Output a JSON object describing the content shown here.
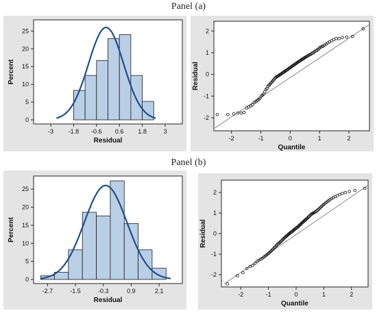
{
  "panels": [
    {
      "label": "Panel (a)",
      "histogram": {
        "type": "bar",
        "xlabel": "Residual",
        "ylabel": "Percent",
        "xlim": [
          -3.9,
          3.9
        ],
        "ylim": [
          0,
          27
        ],
        "xticks": [
          -3,
          -1.8,
          -0.6,
          0.6,
          1.8,
          3
        ],
        "xtick_labels": [
          "-3",
          "-1.8",
          "-0.6",
          "0.6",
          "1.8",
          "3"
        ],
        "yticks": [
          0,
          5,
          10,
          15,
          20,
          25
        ],
        "ytick_labels": [
          "0",
          "5",
          "10",
          "15",
          "20",
          "25"
        ],
        "bins": [
          {
            "start": -1.8,
            "end": -1.2,
            "value": 8.3
          },
          {
            "start": -1.2,
            "end": -0.6,
            "value": 12.5
          },
          {
            "start": -0.6,
            "end": 0.0,
            "value": 16.7
          },
          {
            "start": 0.0,
            "end": 0.6,
            "value": 22.9
          },
          {
            "start": 0.6,
            "end": 1.2,
            "value": 24.0
          },
          {
            "start": 1.2,
            "end": 1.8,
            "value": 12.5
          },
          {
            "start": 1.8,
            "end": 2.4,
            "value": 5.2
          }
        ],
        "normal_curve": {
          "mean": -0.1,
          "sd": 0.92,
          "xrange": [
            -2.7,
            2.5
          ],
          "color": "#1f4e8c"
        }
      },
      "qq": {
        "type": "scatter",
        "xlabel": "Quantile",
        "ylabel": "Residual",
        "xlim": [
          -2.6,
          2.7
        ],
        "ylim": [
          -2.6,
          2.45
        ],
        "xticks": [
          -2,
          -1,
          0,
          1,
          2
        ],
        "xtick_labels": [
          "-2",
          "-1",
          "0",
          "1",
          "2"
        ],
        "yticks": [
          -2,
          -1,
          0,
          1,
          2
        ],
        "ytick_labels": [
          "-2",
          "-1",
          "0",
          "1",
          "2"
        ],
        "reference_line": {
          "x": [
            -2.6,
            2.7
          ],
          "y": [
            -2.5,
            2.3
          ],
          "color": "#9a9a9a"
        },
        "n_points": 96,
        "points_y": [
          -1.85,
          -1.85,
          -1.82,
          -1.78,
          -1.78,
          -1.75,
          -1.55,
          -1.5,
          -1.45,
          -1.4,
          -1.3,
          -1.25,
          -1.2,
          -1.15,
          -1.1,
          -1.0,
          -0.95,
          -0.9,
          -0.8,
          -0.7,
          -0.65,
          -0.55,
          -0.5,
          -0.45,
          -0.4,
          -0.35,
          -0.3,
          -0.25,
          -0.2,
          -0.15,
          -0.12,
          -0.1,
          -0.08,
          -0.05,
          -0.02,
          0.0,
          0.02,
          0.05,
          0.08,
          0.1,
          0.12,
          0.15,
          0.18,
          0.2,
          0.22,
          0.25,
          0.28,
          0.3,
          0.32,
          0.35,
          0.38,
          0.4,
          0.42,
          0.45,
          0.48,
          0.5,
          0.52,
          0.55,
          0.58,
          0.6,
          0.62,
          0.65,
          0.68,
          0.7,
          0.72,
          0.75,
          0.78,
          0.8,
          0.82,
          0.85,
          0.88,
          0.9,
          0.92,
          0.95,
          0.98,
          1.0,
          1.05,
          1.08,
          1.1,
          1.15,
          1.2,
          1.25,
          1.28,
          1.3,
          1.35,
          1.4,
          1.45,
          1.5,
          1.55,
          1.6,
          1.65,
          1.65,
          1.7,
          1.72,
          1.75,
          2.1
        ]
      }
    },
    {
      "label": "Panel (b)",
      "histogram": {
        "type": "bar",
        "xlabel": "Residual",
        "ylabel": "Percent",
        "xlim": [
          -3.3,
          3.1
        ],
        "ylim": [
          0,
          27.5
        ],
        "xticks": [
          -2.7,
          -1.5,
          -0.3,
          0.9,
          2.1
        ],
        "xtick_labels": [
          "-2.7",
          "-1.5",
          "-0.3",
          "0.9",
          "2.1"
        ],
        "yticks": [
          0,
          5,
          10,
          15,
          20,
          25
        ],
        "ytick_labels": [
          "0",
          "5",
          "10",
          "15",
          "20",
          "25"
        ],
        "bins": [
          {
            "start": -3.0,
            "end": -2.4,
            "value": 1.0
          },
          {
            "start": -2.4,
            "end": -1.8,
            "value": 2.0
          },
          {
            "start": -1.8,
            "end": -1.2,
            "value": 8.2
          },
          {
            "start": -1.2,
            "end": -0.6,
            "value": 18.6
          },
          {
            "start": -0.6,
            "end": 0.0,
            "value": 17.6
          },
          {
            "start": 0.0,
            "end": 0.6,
            "value": 27.3
          },
          {
            "start": 0.6,
            "end": 1.2,
            "value": 15.5
          },
          {
            "start": 1.2,
            "end": 1.8,
            "value": 8.2
          },
          {
            "start": 1.8,
            "end": 2.4,
            "value": 3.1
          }
        ],
        "normal_curve": {
          "mean": -0.2,
          "sd": 0.92,
          "xrange": [
            -3.0,
            2.6
          ],
          "color": "#1f4e8c"
        }
      },
      "qq": {
        "type": "scatter",
        "xlabel": "Quantile",
        "ylabel": "Residual",
        "xlim": [
          -2.7,
          2.6
        ],
        "ylim": [
          -2.6,
          2.6
        ],
        "xticks": [
          -2,
          -1,
          0,
          1,
          2
        ],
        "xtick_labels": [
          "-2",
          "-1",
          "0",
          "1",
          "2"
        ],
        "yticks": [
          -2,
          -1,
          0,
          1,
          2
        ],
        "ytick_labels": [
          "-2",
          "-1",
          "0",
          "1",
          "2"
        ],
        "reference_line": {
          "x": [
            -2.6,
            2.6
          ],
          "y": [
            -2.45,
            2.35
          ],
          "color": "#9a9a9a"
        },
        "n_points": 96,
        "points_y": [
          -2.45,
          -2.05,
          -1.9,
          -1.7,
          -1.6,
          -1.55,
          -1.45,
          -1.35,
          -1.3,
          -1.25,
          -1.2,
          -1.15,
          -1.1,
          -1.05,
          -1.0,
          -0.95,
          -0.9,
          -0.85,
          -0.8,
          -0.75,
          -0.7,
          -0.65,
          -0.6,
          -0.55,
          -0.5,
          -0.47,
          -0.44,
          -0.4,
          -0.36,
          -0.32,
          -0.28,
          -0.24,
          -0.2,
          -0.17,
          -0.14,
          -0.1,
          -0.07,
          -0.04,
          0.0,
          0.02,
          0.05,
          0.08,
          0.1,
          0.13,
          0.16,
          0.2,
          0.22,
          0.25,
          0.28,
          0.3,
          0.33,
          0.36,
          0.4,
          0.43,
          0.46,
          0.5,
          0.53,
          0.56,
          0.6,
          0.63,
          0.66,
          0.7,
          0.73,
          0.76,
          0.8,
          0.84,
          0.88,
          0.92,
          0.95,
          0.98,
          1.0,
          1.02,
          1.05,
          1.08,
          1.12,
          1.16,
          1.2,
          1.25,
          1.3,
          1.35,
          1.4,
          1.45,
          1.5,
          1.55,
          1.6,
          1.65,
          1.7,
          1.75,
          1.8,
          1.85,
          1.9,
          1.95,
          2.0,
          2.05,
          2.1,
          2.2
        ]
      }
    }
  ]
}
